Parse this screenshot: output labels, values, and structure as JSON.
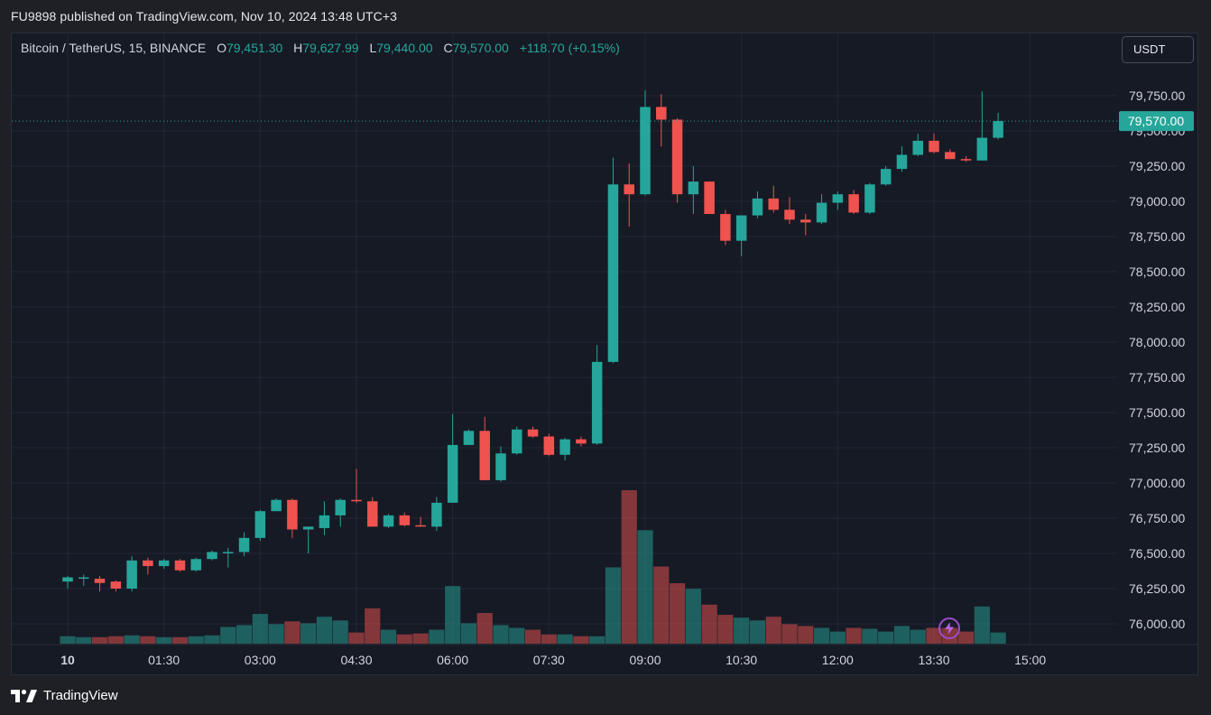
{
  "header": {
    "published": "FU9898 published on TradingView.com, Nov 10, 2024 13:48 UTC+3"
  },
  "legend": {
    "symbol": "Bitcoin / TetherUS, 15, BINANCE",
    "open_label": "O",
    "open": "79,451.30",
    "high_label": "H",
    "high": "79,627.99",
    "low_label": "L",
    "low": "79,440.00",
    "close_label": "C",
    "close": "79,570.00",
    "change": "+118.70 (+0.15%)"
  },
  "currency_button": "USDT",
  "last_price_label": "79,570.00",
  "footer": {
    "brand": "TradingView"
  },
  "icons": {
    "logo": "tradingview-logo-icon",
    "lightning": "lightning-icon"
  },
  "colors": {
    "up": "#26a69a",
    "down": "#ef5350",
    "background": "#161a25"
  },
  "chart_data": {
    "type": "candlestick",
    "title": "Bitcoin / TetherUS, 15, BINANCE",
    "y_ticks": [
      "79,750.00",
      "79,500.00",
      "79,250.00",
      "79,000.00",
      "78,750.00",
      "78,500.00",
      "78,250.00",
      "78,000.00",
      "77,750.00",
      "77,500.00",
      "77,250.00",
      "77,000.00",
      "76,750.00",
      "76,500.00",
      "76,250.00",
      "76,000.00"
    ],
    "y_tick_values": [
      79750,
      79500,
      79250,
      79000,
      78750,
      78500,
      78250,
      78000,
      77750,
      77500,
      77250,
      77000,
      76750,
      76500,
      76250,
      76000
    ],
    "x_ticks": [
      "10",
      "01:30",
      "03:00",
      "04:30",
      "06:00",
      "07:30",
      "09:00",
      "10:30",
      "12:00",
      "13:30",
      "15:00"
    ],
    "x_tick_times": [
      "00:00",
      "01:30",
      "03:00",
      "04:30",
      "06:00",
      "07:30",
      "09:00",
      "10:30",
      "12:00",
      "13:30",
      "15:00"
    ],
    "last_price": 79570,
    "grid": true,
    "candles": [
      {
        "t": "00:00",
        "o": 76300,
        "h": 76340,
        "l": 76250,
        "c": 76330
      },
      {
        "t": "00:15",
        "o": 76320,
        "h": 76350,
        "l": 76270,
        "c": 76330
      },
      {
        "t": "00:30",
        "o": 76320,
        "h": 76340,
        "l": 76230,
        "c": 76290
      },
      {
        "t": "00:45",
        "o": 76300,
        "h": 76310,
        "l": 76230,
        "c": 76250
      },
      {
        "t": "01:00",
        "o": 76250,
        "h": 76480,
        "l": 76230,
        "c": 76450
      },
      {
        "t": "01:15",
        "o": 76450,
        "h": 76470,
        "l": 76350,
        "c": 76410
      },
      {
        "t": "01:30",
        "o": 76410,
        "h": 76460,
        "l": 76390,
        "c": 76450
      },
      {
        "t": "01:45",
        "o": 76450,
        "h": 76460,
        "l": 76370,
        "c": 76380
      },
      {
        "t": "02:00",
        "o": 76380,
        "h": 76470,
        "l": 76370,
        "c": 76460
      },
      {
        "t": "02:15",
        "o": 76460,
        "h": 76520,
        "l": 76450,
        "c": 76510
      },
      {
        "t": "02:30",
        "o": 76510,
        "h": 76540,
        "l": 76400,
        "c": 76510
      },
      {
        "t": "02:45",
        "o": 76510,
        "h": 76650,
        "l": 76480,
        "c": 76610
      },
      {
        "t": "03:00",
        "o": 76610,
        "h": 76810,
        "l": 76590,
        "c": 76800
      },
      {
        "t": "03:15",
        "o": 76800,
        "h": 76890,
        "l": 76800,
        "c": 76880
      },
      {
        "t": "03:30",
        "o": 76880,
        "h": 76890,
        "l": 76610,
        "c": 76670
      },
      {
        "t": "03:45",
        "o": 76670,
        "h": 76690,
        "l": 76500,
        "c": 76690
      },
      {
        "t": "04:00",
        "o": 76680,
        "h": 76870,
        "l": 76630,
        "c": 76770
      },
      {
        "t": "04:15",
        "o": 76770,
        "h": 76890,
        "l": 76690,
        "c": 76880
      },
      {
        "t": "04:30",
        "o": 76880,
        "h": 77100,
        "l": 76860,
        "c": 76870
      },
      {
        "t": "04:45",
        "o": 76870,
        "h": 76900,
        "l": 76690,
        "c": 76690
      },
      {
        "t": "05:00",
        "o": 76690,
        "h": 76780,
        "l": 76680,
        "c": 76770
      },
      {
        "t": "05:15",
        "o": 76770,
        "h": 76790,
        "l": 76690,
        "c": 76700
      },
      {
        "t": "05:30",
        "o": 76700,
        "h": 76760,
        "l": 76690,
        "c": 76690
      },
      {
        "t": "05:45",
        "o": 76690,
        "h": 76900,
        "l": 76660,
        "c": 76860
      },
      {
        "t": "06:00",
        "o": 76860,
        "h": 77490,
        "l": 76860,
        "c": 77270
      },
      {
        "t": "06:15",
        "o": 77270,
        "h": 77380,
        "l": 77270,
        "c": 77370
      },
      {
        "t": "06:30",
        "o": 77370,
        "h": 77470,
        "l": 77020,
        "c": 77020
      },
      {
        "t": "06:45",
        "o": 77020,
        "h": 77260,
        "l": 77010,
        "c": 77210
      },
      {
        "t": "07:00",
        "o": 77210,
        "h": 77400,
        "l": 77200,
        "c": 77380
      },
      {
        "t": "07:15",
        "o": 77380,
        "h": 77400,
        "l": 77320,
        "c": 77330
      },
      {
        "t": "07:30",
        "o": 77330,
        "h": 77350,
        "l": 77190,
        "c": 77200
      },
      {
        "t": "07:45",
        "o": 77200,
        "h": 77320,
        "l": 77160,
        "c": 77310
      },
      {
        "t": "08:00",
        "o": 77310,
        "h": 77330,
        "l": 77260,
        "c": 77280
      },
      {
        "t": "08:15",
        "o": 77280,
        "h": 77980,
        "l": 77270,
        "c": 77860
      },
      {
        "t": "08:30",
        "o": 77860,
        "h": 79310,
        "l": 77850,
        "c": 79120
      },
      {
        "t": "08:45",
        "o": 79120,
        "h": 79270,
        "l": 78820,
        "c": 79050
      },
      {
        "t": "09:00",
        "o": 79050,
        "h": 79790,
        "l": 79040,
        "c": 79670
      },
      {
        "t": "09:15",
        "o": 79670,
        "h": 79760,
        "l": 79390,
        "c": 79580
      },
      {
        "t": "09:30",
        "o": 79580,
        "h": 79590,
        "l": 78990,
        "c": 79050
      },
      {
        "t": "09:45",
        "o": 79050,
        "h": 79250,
        "l": 78910,
        "c": 79140
      },
      {
        "t": "10:00",
        "o": 79140,
        "h": 79140,
        "l": 78920,
        "c": 78910
      },
      {
        "t": "10:15",
        "o": 78910,
        "h": 78940,
        "l": 78690,
        "c": 78720
      },
      {
        "t": "10:30",
        "o": 78720,
        "h": 78900,
        "l": 78610,
        "c": 78900
      },
      {
        "t": "10:45",
        "o": 78900,
        "h": 79070,
        "l": 78880,
        "c": 79020
      },
      {
        "t": "11:00",
        "o": 79020,
        "h": 79110,
        "l": 78920,
        "c": 78940
      },
      {
        "t": "11:15",
        "o": 78940,
        "h": 79030,
        "l": 78840,
        "c": 78870
      },
      {
        "t": "11:30",
        "o": 78870,
        "h": 78910,
        "l": 78760,
        "c": 78850
      },
      {
        "t": "11:45",
        "o": 78850,
        "h": 79050,
        "l": 78840,
        "c": 78990
      },
      {
        "t": "12:00",
        "o": 78990,
        "h": 79070,
        "l": 78940,
        "c": 79050
      },
      {
        "t": "12:15",
        "o": 79050,
        "h": 79080,
        "l": 78910,
        "c": 78920
      },
      {
        "t": "12:30",
        "o": 78920,
        "h": 79130,
        "l": 78910,
        "c": 79120
      },
      {
        "t": "12:45",
        "o": 79120,
        "h": 79250,
        "l": 79110,
        "c": 79230
      },
      {
        "t": "13:00",
        "o": 79230,
        "h": 79390,
        "l": 79210,
        "c": 79330
      },
      {
        "t": "13:15",
        "o": 79330,
        "h": 79480,
        "l": 79320,
        "c": 79430
      },
      {
        "t": "13:30",
        "o": 79430,
        "h": 79480,
        "l": 79340,
        "c": 79350
      },
      {
        "t": "13:45",
        "o": 79350,
        "h": 79370,
        "l": 79300,
        "c": 79300
      },
      {
        "t": "14:00",
        "o": 79300,
        "h": 79320,
        "l": 79280,
        "c": 79290
      },
      {
        "t": "14:15",
        "o": 79290,
        "h": 79780,
        "l": 79290,
        "c": 79451.3
      },
      {
        "t": "14:30",
        "o": 79451.3,
        "h": 79627.99,
        "l": 79440,
        "c": 79570
      }
    ],
    "volume": [
      8,
      7,
      7,
      8,
      9,
      8,
      7,
      7,
      8,
      9,
      18,
      20,
      32,
      21,
      24,
      22,
      29,
      25,
      12,
      38,
      15,
      10,
      11,
      15,
      62,
      22,
      33,
      20,
      17,
      15,
      10,
      10,
      8,
      8,
      82,
      165,
      122,
      83,
      65,
      59,
      42,
      31,
      28,
      25,
      29,
      21,
      19,
      17,
      13,
      17,
      16,
      13,
      19,
      15,
      17,
      17,
      13,
      40,
      12
    ]
  }
}
